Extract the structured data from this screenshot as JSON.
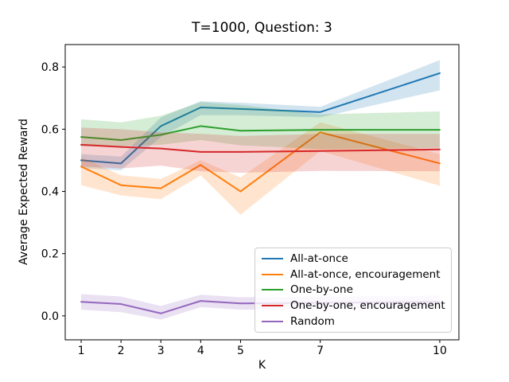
{
  "figure": {
    "background": "#ffffff",
    "text_color": "#000000",
    "legend_border_color": "#cccccc"
  },
  "chart_data": {
    "type": "line",
    "title": "T=1000, Question: 3",
    "xlabel": "K",
    "ylabel": "Average Expected Reward",
    "grid": false,
    "legend_position": "lower right",
    "x": [
      1,
      2,
      3,
      4,
      5,
      7,
      10
    ],
    "xticks": [
      1,
      2,
      3,
      4,
      5,
      7,
      10
    ],
    "yticks": [
      0.0,
      0.2,
      0.4,
      0.6,
      0.8
    ],
    "xlim": [
      0.6,
      10.48
    ],
    "ylim": [
      -0.077,
      0.872
    ],
    "band_alpha": 0.2,
    "series": [
      {
        "name": "All-at-once",
        "color": "#1f77b4",
        "values": [
          0.5,
          0.49,
          0.61,
          0.67,
          0.665,
          0.655,
          0.78
        ],
        "band_lower": [
          0.475,
          0.468,
          0.575,
          0.645,
          0.645,
          0.638,
          0.725
        ],
        "band_upper": [
          0.52,
          0.512,
          0.638,
          0.69,
          0.685,
          0.672,
          0.822
        ]
      },
      {
        "name": "All-at-once, encouragement",
        "color": "#ff7f0e",
        "values": [
          0.48,
          0.42,
          0.41,
          0.485,
          0.4,
          0.59,
          0.49
        ],
        "band_lower": [
          0.42,
          0.387,
          0.375,
          0.452,
          0.325,
          0.53,
          0.418
        ],
        "band_upper": [
          0.51,
          0.452,
          0.44,
          0.5,
          0.445,
          0.622,
          0.52
        ]
      },
      {
        "name": "One-by-one",
        "color": "#2ca02c",
        "values": [
          0.575,
          0.565,
          0.582,
          0.61,
          0.595,
          0.598,
          0.598
        ],
        "band_lower": [
          0.545,
          0.545,
          0.55,
          0.565,
          0.548,
          0.536,
          0.54
        ],
        "band_upper": [
          0.632,
          0.622,
          0.643,
          0.687,
          0.678,
          0.648,
          0.657
        ]
      },
      {
        "name": "One-by-one, encouragement",
        "color": "#d62728",
        "values": [
          0.55,
          0.543,
          0.538,
          0.527,
          0.527,
          0.53,
          0.535
        ],
        "band_lower": [
          0.48,
          0.474,
          0.483,
          0.465,
          0.46,
          0.466,
          0.465
        ],
        "band_upper": [
          0.605,
          0.6,
          0.59,
          0.585,
          0.578,
          0.585,
          0.585
        ]
      },
      {
        "name": "Random",
        "color": "#9467bd",
        "values": [
          0.045,
          0.038,
          0.008,
          0.048,
          0.04,
          0.042,
          0.045
        ],
        "band_lower": [
          0.02,
          0.012,
          -0.012,
          0.028,
          0.02,
          0.022,
          0.025
        ],
        "band_upper": [
          0.07,
          0.062,
          0.032,
          0.068,
          0.06,
          0.062,
          0.065
        ]
      }
    ]
  }
}
